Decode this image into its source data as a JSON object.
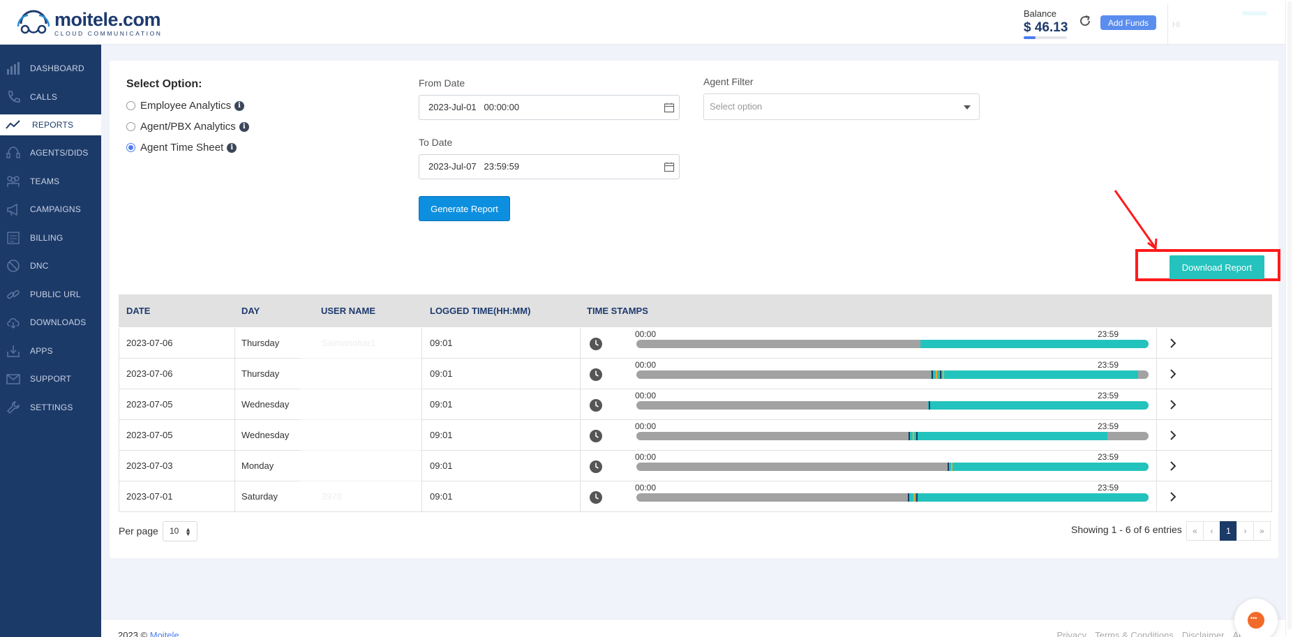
{
  "header": {
    "logo_name": "moitele.com",
    "logo_tagline": "CLOUD COMMUNICATION",
    "balance_label": "Balance",
    "balance_value": "$ 46.13",
    "add_funds_label": "Add Funds",
    "user_text": "Hi"
  },
  "sidebar": {
    "items": [
      {
        "label": "DASHBOARD",
        "icon": "dashboard-icon"
      },
      {
        "label": "CALLS",
        "icon": "phone-icon"
      },
      {
        "label": "REPORTS",
        "icon": "trend-icon",
        "active": true
      },
      {
        "label": "AGENTS/DIDS",
        "icon": "headset-icon"
      },
      {
        "label": "TEAMS",
        "icon": "team-icon"
      },
      {
        "label": "CAMPAIGNS",
        "icon": "megaphone-icon"
      },
      {
        "label": "BILLING",
        "icon": "billing-icon"
      },
      {
        "label": "DNC",
        "icon": "block-icon"
      },
      {
        "label": "PUBLIC URL",
        "icon": "link-icon"
      },
      {
        "label": "DOWNLOADS",
        "icon": "cloud-download-icon"
      },
      {
        "label": "APPS",
        "icon": "apps-icon"
      },
      {
        "label": "SUPPORT",
        "icon": "mail-icon"
      },
      {
        "label": "SETTINGS",
        "icon": "wrench-icon"
      }
    ]
  },
  "options": {
    "title": "Select Option:",
    "items": [
      {
        "label": "Employee Analytics",
        "checked": false
      },
      {
        "label": "Agent/PBX Analytics",
        "checked": false
      },
      {
        "label": "Agent Time Sheet",
        "checked": true
      }
    ],
    "info_glyph": "i"
  },
  "filters": {
    "from_label": "From Date",
    "from_value": "2023-Jul-01   00:00:00",
    "to_label": "To Date",
    "to_value": "2023-Jul-07   23:59:59",
    "agent_label": "Agent Filter",
    "agent_placeholder": "Select option",
    "generate_label": "Generate Report",
    "download_label": "Download Report"
  },
  "table": {
    "columns": [
      "DATE",
      "DAY",
      "USER NAME",
      "LOGGED TIME(HH:MM)",
      "TIME STAMPS"
    ],
    "ts_start": "00:00",
    "ts_end": "23:59",
    "rows": [
      {
        "date": "2023-07-06",
        "day": "Thursday",
        "user": "Saimanohar1",
        "logged": "09:01",
        "teal_start": 0.555,
        "teal_end": 1.0,
        "marks": []
      },
      {
        "date": "2023-07-06",
        "day": "Thursday",
        "user": "",
        "logged": "09:01",
        "teal_start": 0.575,
        "teal_end": 0.98,
        "marks": [
          0.576,
          0.584,
          0.592,
          0.598
        ]
      },
      {
        "date": "2023-07-05",
        "day": "Wednesday",
        "user": "",
        "logged": "09:01",
        "teal_start": 0.57,
        "teal_end": 1.0,
        "marks": [
          0.571
        ]
      },
      {
        "date": "2023-07-05",
        "day": "Wednesday",
        "user": "",
        "logged": "09:01",
        "teal_start": 0.532,
        "teal_end": 0.92,
        "marks": [
          0.532,
          0.54,
          0.546
        ]
      },
      {
        "date": "2023-07-03",
        "day": "Monday",
        "user": "",
        "logged": "09:01",
        "teal_start": 0.607,
        "teal_end": 1.0,
        "marks": [
          0.607,
          0.614
        ]
      },
      {
        "date": "2023-07-01",
        "day": "Saturday",
        "user": "3976",
        "logged": "09:01",
        "teal_start": 0.53,
        "teal_end": 1.0,
        "marks": [
          0.53,
          0.541,
          0.547
        ]
      }
    ]
  },
  "pagination": {
    "per_page_label": "Per page",
    "per_page_value": "10",
    "showing_text": "Showing 1 - 6 of 6 entries",
    "pages": [
      "«",
      "‹",
      "1",
      "›",
      "»"
    ],
    "current": "1"
  },
  "footer": {
    "year": "2023 ©",
    "brand": "Moitele",
    "links": [
      "Privacy",
      "Terms & Conditions",
      "Disclaimer",
      "About Us"
    ]
  },
  "colors": {
    "sidebar_bg": "#1c3a68",
    "accent_teal": "#23c3bd",
    "primary_blue": "#0d8fe0",
    "annotation_red": "#ff1a1a",
    "mark_orange": "#f5a623",
    "mark_dark": "#1c3a68"
  }
}
